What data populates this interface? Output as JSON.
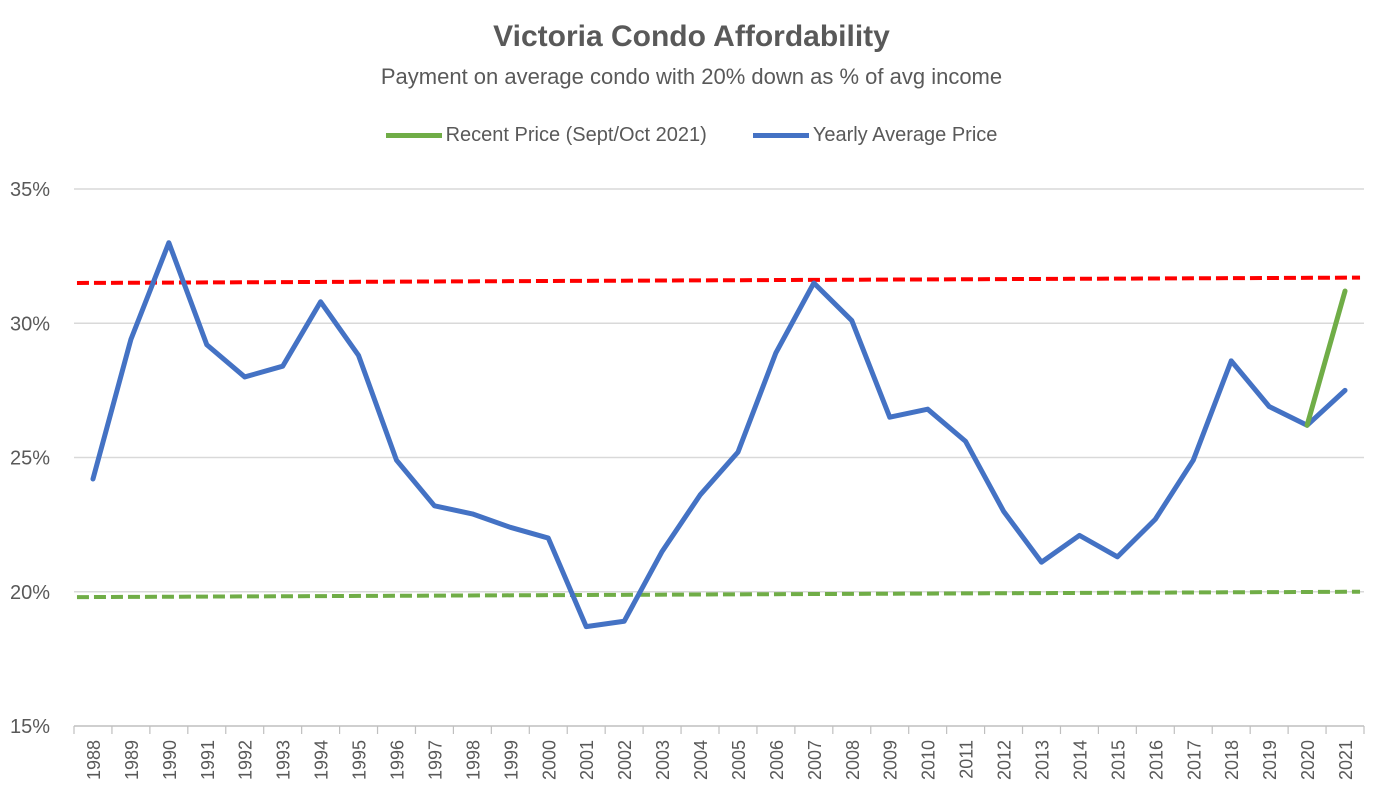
{
  "chart_data": {
    "type": "line",
    "title": "Victoria Condo Affordability",
    "subtitle": "Payment on average condo with 20% down as % of avg income",
    "xlabel": "",
    "ylabel": "",
    "ylim": [
      15,
      35
    ],
    "y_ticks": [
      "15%",
      "20%",
      "25%",
      "30%",
      "35%"
    ],
    "y_tick_values": [
      15,
      20,
      25,
      30,
      35
    ],
    "grid": true,
    "legend_position": "top",
    "categories": [
      "1988",
      "1989",
      "1990",
      "1991",
      "1992",
      "1993",
      "1994",
      "1995",
      "1996",
      "1997",
      "1998",
      "1999",
      "2000",
      "2001",
      "2002",
      "2003",
      "2004",
      "2005",
      "2006",
      "2007",
      "2008",
      "2009",
      "2010",
      "2011",
      "2012",
      "2013",
      "2014",
      "2015",
      "2016",
      "2017",
      "2018",
      "2019",
      "2020",
      "2021"
    ],
    "series": [
      {
        "name": "Recent Price (Sept/Oct 2021)",
        "color": "#70AD47",
        "x": [
          "2020",
          "2021"
        ],
        "values": [
          26.2,
          31.2
        ]
      },
      {
        "name": "Yearly Average Price",
        "color": "#4472C4",
        "values": [
          24.2,
          29.4,
          33.0,
          29.2,
          28.0,
          28.4,
          30.8,
          28.8,
          24.9,
          23.2,
          22.9,
          22.4,
          22.0,
          18.7,
          18.9,
          21.5,
          23.6,
          25.2,
          28.9,
          31.5,
          30.1,
          26.5,
          26.8,
          25.6,
          23.0,
          21.1,
          22.1,
          21.3,
          22.7,
          24.9,
          28.6,
          26.9,
          26.2,
          27.5
        ]
      }
    ],
    "reference_lines": [
      {
        "kind": "upper-dashed",
        "color": "#FF0000",
        "from": [
          "1988",
          31.5
        ],
        "to": [
          "2021",
          31.7
        ]
      },
      {
        "kind": "lower-dashed",
        "color": "#70AD47",
        "from": [
          "1988",
          19.8
        ],
        "to": [
          "2021",
          20.0
        ]
      }
    ]
  }
}
